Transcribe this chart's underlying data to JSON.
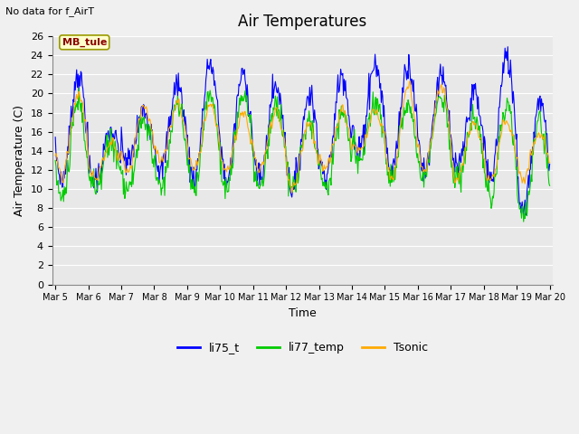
{
  "title": "Air Temperatures",
  "ylabel": "Air Temperature (C)",
  "xlabel": "Time",
  "note": "No data for f_AirT",
  "mb_tule_label": "MB_tule",
  "legend_labels": [
    "li75_t",
    "li77_temp",
    "Tsonic"
  ],
  "legend_colors": [
    "#0000ff",
    "#00cc00",
    "#ffaa00"
  ],
  "ylim": [
    0,
    26
  ],
  "yticks": [
    0,
    2,
    4,
    6,
    8,
    10,
    12,
    14,
    16,
    18,
    20,
    22,
    24,
    26
  ],
  "days": [
    "Mar 5",
    "Mar 6",
    "Mar 7",
    "Mar 8",
    "Mar 9",
    "Mar 10",
    "Mar 11",
    "Mar 12",
    "Mar 13",
    "Mar 14",
    "Mar 15",
    "Mar 16",
    "Mar 17",
    "Mar 18",
    "Mar 19",
    "Mar 20"
  ],
  "plot_bg": "#e8e8e8",
  "fig_bg": "#f0f0f0",
  "title_fontsize": 12,
  "label_fontsize": 9,
  "tick_fontsize": 8
}
